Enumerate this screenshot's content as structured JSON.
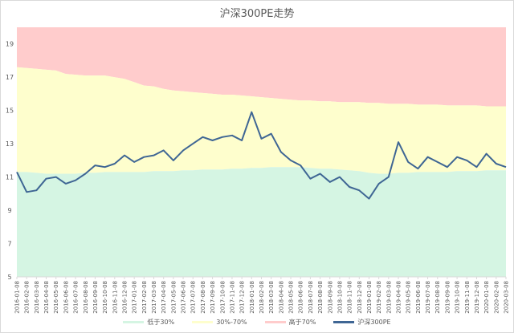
{
  "chart_data": {
    "type": "area",
    "title": "沪深300PE走势",
    "xlabel": "",
    "ylabel": "",
    "ylim": [
      5,
      20
    ],
    "yticks": [
      5,
      7,
      9,
      11,
      13,
      15,
      17,
      19
    ],
    "grid": false,
    "legend_position": "bottom",
    "categories": [
      "2016-01-08",
      "2016-02-08",
      "2016-03-08",
      "2016-04-08",
      "2016-05-08",
      "2016-06-08",
      "2016-07-08",
      "2016-08-08",
      "2016-09-08",
      "2016-10-08",
      "2016-11-08",
      "2016-12-08",
      "2017-01-08",
      "2017-02-08",
      "2017-03-08",
      "2017-04-08",
      "2017-05-08",
      "2017-06-08",
      "2017-07-08",
      "2017-08-08",
      "2017-09-08",
      "2017-10-08",
      "2017-11-08",
      "2017-12-08",
      "2018-01-08",
      "2018-02-08",
      "2018-03-08",
      "2018-04-08",
      "2018-05-08",
      "2018-06-08",
      "2018-07-08",
      "2018-08-08",
      "2018-09-08",
      "2018-10-08",
      "2018-11-08",
      "2018-12-08",
      "2019-01-08",
      "2019-02-08",
      "2019-03-08",
      "2019-04-08",
      "2019-05-08",
      "2019-06-08",
      "2019-07-08",
      "2019-08-08",
      "2019-09-08",
      "2019-10-08",
      "2019-11-08",
      "2019-12-08",
      "2020-01-08",
      "2020-02-08",
      "2020-03-08"
    ],
    "series": [
      {
        "name": "低于30%",
        "kind": "stacked-area",
        "color": "#d5f5e3",
        "values": [
          11.3,
          11.3,
          11.25,
          11.2,
          11.2,
          11.2,
          11.2,
          11.25,
          11.25,
          11.3,
          11.3,
          11.3,
          11.3,
          11.3,
          11.35,
          11.35,
          11.35,
          11.4,
          11.4,
          11.45,
          11.45,
          11.45,
          11.5,
          11.5,
          11.55,
          11.55,
          11.6,
          11.6,
          11.6,
          11.6,
          11.55,
          11.5,
          11.5,
          11.45,
          11.4,
          11.35,
          11.25,
          11.2,
          11.2,
          11.25,
          11.25,
          11.3,
          11.3,
          11.3,
          11.3,
          11.35,
          11.35,
          11.35,
          11.4,
          11.4,
          11.4
        ]
      },
      {
        "name": "30%-70%",
        "kind": "stacked-area",
        "color": "#fefecd",
        "values": [
          17.6,
          17.55,
          17.5,
          17.45,
          17.4,
          17.2,
          17.15,
          17.1,
          17.1,
          17.1,
          17.0,
          16.9,
          16.7,
          16.5,
          16.45,
          16.3,
          16.2,
          16.15,
          16.1,
          16.05,
          16.0,
          15.95,
          15.95,
          15.9,
          15.85,
          15.8,
          15.75,
          15.7,
          15.65,
          15.6,
          15.6,
          15.55,
          15.55,
          15.5,
          15.5,
          15.5,
          15.45,
          15.45,
          15.4,
          15.4,
          15.4,
          15.35,
          15.35,
          15.35,
          15.3,
          15.3,
          15.3,
          15.3,
          15.25,
          15.25,
          15.25
        ]
      },
      {
        "name": "高于70%",
        "kind": "stacked-area",
        "color": "#ffcccc",
        "values": [
          20,
          20,
          20,
          20,
          20,
          20,
          20,
          20,
          20,
          20,
          20,
          20,
          20,
          20,
          20,
          20,
          20,
          20,
          20,
          20,
          20,
          20,
          20,
          20,
          20,
          20,
          20,
          20,
          20,
          20,
          20,
          20,
          20,
          20,
          20,
          20,
          20,
          20,
          20,
          20,
          20,
          20,
          20,
          20,
          20,
          20,
          20,
          20,
          20,
          20,
          20
        ]
      },
      {
        "name": "沪深300PE",
        "kind": "line",
        "color": "#3f6694",
        "values": [
          11.3,
          10.1,
          10.2,
          10.9,
          11.0,
          10.6,
          10.8,
          11.2,
          11.7,
          11.6,
          11.8,
          12.3,
          11.9,
          12.2,
          12.3,
          12.6,
          12.0,
          12.6,
          13.0,
          13.4,
          13.2,
          13.4,
          13.5,
          13.2,
          14.9,
          13.3,
          13.6,
          12.5,
          12.0,
          11.7,
          10.9,
          11.2,
          10.7,
          11.0,
          10.4,
          10.2,
          9.7,
          10.6,
          11.0,
          13.1,
          11.9,
          11.5,
          12.2,
          11.9,
          11.6,
          12.2,
          12.0,
          11.6,
          12.4,
          11.8,
          11.6
        ]
      }
    ]
  },
  "legend": {
    "items": [
      {
        "label": "低于30%",
        "color": "#d5f5e3"
      },
      {
        "label": "30%-70%",
        "color": "#fefecd"
      },
      {
        "label": "高于70%",
        "color": "#ffcccc"
      },
      {
        "label": "沪深300PE",
        "color": "#3f6694"
      }
    ]
  }
}
